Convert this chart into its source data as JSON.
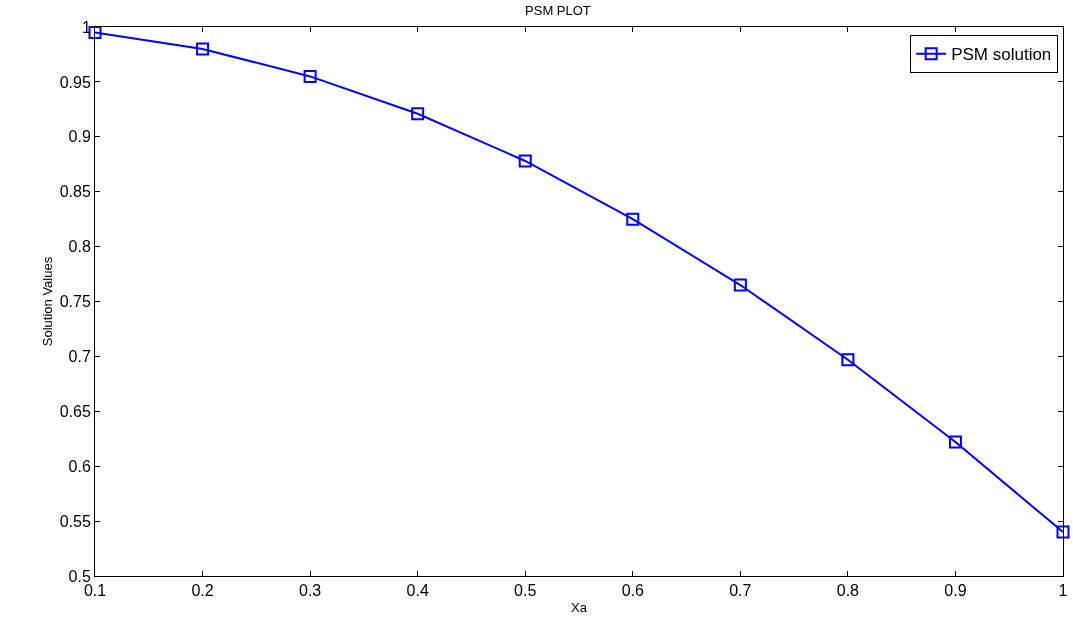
{
  "chart_data": {
    "type": "line",
    "title": "PSM PLOT",
    "xlabel": "Xa",
    "ylabel": "Solution Values",
    "x": [
      0.1,
      0.2,
      0.3,
      0.4,
      0.5,
      0.6,
      0.7,
      0.8,
      0.9,
      1
    ],
    "series": [
      {
        "name": "PSM solution",
        "color": "#0000ff",
        "values": [
          0.995,
          0.98,
          0.955,
          0.921,
          0.878,
          0.825,
          0.765,
          0.697,
          0.622,
          0.54
        ]
      }
    ],
    "xlim": [
      0.1,
      1
    ],
    "xticks": [
      0.1,
      0.2,
      0.3,
      0.4,
      0.5,
      0.6,
      0.7,
      0.8,
      0.9,
      1
    ],
    "ylim": [
      0.5,
      1
    ],
    "yticks": [
      0.5,
      0.55,
      0.6,
      0.65,
      0.7,
      0.75,
      0.8,
      0.85,
      0.9,
      0.95,
      1
    ],
    "grid": false,
    "legend": "top right",
    "marker": "square",
    "line_style": "solid"
  }
}
